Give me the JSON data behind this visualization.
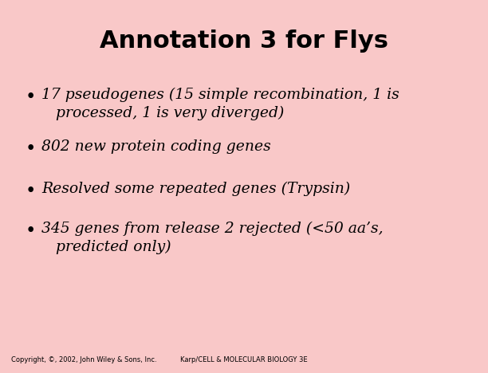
{
  "title": "Annotation 3 for Flys",
  "background_color": "#f9c8c8",
  "title_color": "#000000",
  "title_fontsize": 22,
  "bullet_items": [
    "17 pseudogenes (15 simple recombination, 1 is\n   processed, 1 is very diverged)",
    "802 new protein coding genes",
    "Resolved some repeated genes (Trypsin)",
    "345 genes from release 2 rejected (<50 aa’s,\n   predicted only)"
  ],
  "bullet_fontsize": 13.5,
  "bullet_color": "#000000",
  "footer_left": "Copyright, ©, 2002, John Wiley & Sons, Inc.",
  "footer_right": "Karp/CELL & MOLECULAR BIOLOGY 3E",
  "footer_fontsize": 6.0
}
